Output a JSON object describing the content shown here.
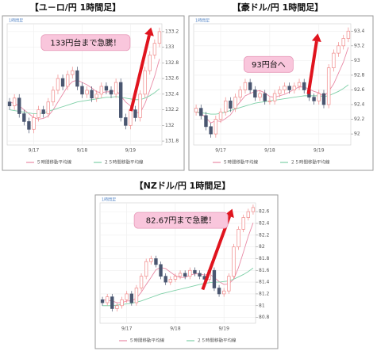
{
  "chart_data": [
    {
      "type": "candlestick",
      "title": "【ユ－ロ/円 1時間足】",
      "corner_label": "1時間足",
      "annotation": "133円台まで急騰！",
      "categories": [
        null,
        null,
        null,
        null,
        null,
        "9/17",
        null,
        null,
        null,
        null,
        null,
        null,
        null,
        null,
        null,
        "9/18",
        null,
        null,
        null,
        null,
        null,
        null,
        null,
        null,
        null,
        "9/19",
        null,
        null,
        null,
        null,
        null,
        null
      ],
      "open": [
        132.3,
        132.25,
        132.35,
        132.15,
        132.05,
        131.95,
        132.1,
        132.2,
        132.15,
        132.3,
        132.45,
        132.6,
        132.5,
        132.65,
        132.7,
        132.5,
        132.4,
        132.45,
        132.35,
        132.4,
        132.5,
        132.45,
        132.4,
        132.55,
        132.1,
        132.0,
        132.2,
        132.1,
        132.4,
        132.7,
        132.9,
        133.05
      ],
      "high": [
        132.35,
        132.4,
        132.4,
        132.2,
        132.1,
        132.15,
        132.25,
        132.25,
        132.35,
        132.5,
        132.65,
        132.65,
        132.7,
        132.75,
        132.75,
        132.55,
        132.5,
        132.5,
        132.45,
        132.55,
        132.55,
        132.5,
        132.6,
        132.6,
        132.15,
        132.25,
        132.25,
        132.45,
        132.75,
        132.95,
        133.1,
        133.25
      ],
      "low": [
        132.2,
        132.2,
        132.1,
        132.0,
        131.9,
        131.9,
        132.05,
        132.1,
        132.1,
        132.25,
        132.4,
        132.45,
        132.45,
        132.6,
        132.45,
        132.35,
        132.35,
        132.3,
        132.3,
        132.35,
        132.4,
        132.35,
        132.35,
        132.05,
        131.95,
        131.95,
        132.05,
        132.05,
        132.35,
        132.65,
        132.85,
        133.0
      ],
      "close": [
        132.25,
        132.35,
        132.15,
        132.05,
        131.95,
        132.1,
        132.2,
        132.15,
        132.3,
        132.45,
        132.6,
        132.5,
        132.65,
        132.7,
        132.5,
        132.4,
        132.45,
        132.35,
        132.4,
        132.5,
        132.45,
        132.4,
        132.55,
        132.1,
        132.0,
        132.2,
        132.1,
        132.4,
        132.7,
        132.9,
        133.05,
        133.2
      ],
      "up_color": "#f08a8a",
      "down_color": "#4a5670",
      "series": [
        {
          "name": "５時間移動平均線",
          "color": "#e98aa6",
          "values": [
            132.3,
            132.28,
            132.25,
            132.2,
            132.15,
            132.1,
            132.08,
            132.09,
            132.12,
            132.2,
            132.3,
            132.4,
            132.5,
            132.56,
            132.58,
            132.55,
            132.52,
            132.48,
            132.43,
            132.42,
            132.43,
            132.43,
            132.45,
            132.38,
            132.3,
            132.25,
            132.17,
            132.16,
            132.28,
            132.45,
            132.63,
            132.85
          ]
        },
        {
          "name": "２５時間移動平均線",
          "color": "#7fd0a8",
          "values": [
            132.2,
            132.19,
            132.18,
            132.17,
            132.16,
            132.15,
            132.15,
            132.16,
            132.18,
            132.2,
            132.22,
            132.24,
            132.26,
            132.28,
            132.3,
            132.31,
            132.32,
            132.33,
            132.34,
            132.35,
            132.36,
            132.36,
            132.37,
            132.36,
            132.35,
            132.34,
            132.33,
            132.33,
            132.35,
            132.38,
            132.42,
            132.47
          ]
        }
      ],
      "ylim": [
        131.75,
        133.3
      ],
      "yticks": [
        131.8,
        132,
        132.2,
        132.4,
        132.6,
        132.8,
        133,
        133.2
      ],
      "grid": true
    },
    {
      "type": "candlestick",
      "title": "【豪ドル/円 1時間足】",
      "corner_label": "1時間足",
      "annotation": "93円台へ",
      "categories": [
        null,
        null,
        null,
        null,
        null,
        "9/17",
        null,
        null,
        null,
        null,
        null,
        null,
        null,
        null,
        null,
        "9/18",
        null,
        null,
        null,
        null,
        null,
        null,
        null,
        null,
        null,
        "9/19",
        null,
        null,
        null,
        null,
        null,
        null
      ],
      "open": [
        92.3,
        92.35,
        92.25,
        92.1,
        92.0,
        92.2,
        92.3,
        92.45,
        92.35,
        92.5,
        92.6,
        92.7,
        92.6,
        92.5,
        92.55,
        92.45,
        92.45,
        92.55,
        92.6,
        92.65,
        92.6,
        92.65,
        92.7,
        92.6,
        92.5,
        92.45,
        92.55,
        92.4,
        92.9,
        93.1,
        93.2,
        93.3
      ],
      "high": [
        92.4,
        92.4,
        92.3,
        92.15,
        92.25,
        92.35,
        92.5,
        92.5,
        92.55,
        92.65,
        92.75,
        92.75,
        92.65,
        92.6,
        92.6,
        92.5,
        92.6,
        92.65,
        92.7,
        92.7,
        92.7,
        92.75,
        92.75,
        92.65,
        92.55,
        92.6,
        92.6,
        92.95,
        93.15,
        93.25,
        93.35,
        93.45
      ],
      "low": [
        92.25,
        92.2,
        92.05,
        91.95,
        91.95,
        92.15,
        92.25,
        92.3,
        92.3,
        92.45,
        92.55,
        92.55,
        92.45,
        92.45,
        92.4,
        92.4,
        92.4,
        92.5,
        92.55,
        92.55,
        92.55,
        92.6,
        92.55,
        92.45,
        92.4,
        92.4,
        92.35,
        92.35,
        92.85,
        93.05,
        93.15,
        93.25
      ],
      "close": [
        92.35,
        92.25,
        92.1,
        92.0,
        92.2,
        92.3,
        92.45,
        92.35,
        92.5,
        92.6,
        92.7,
        92.6,
        92.5,
        92.55,
        92.45,
        92.45,
        92.55,
        92.6,
        92.65,
        92.6,
        92.65,
        92.7,
        92.6,
        92.5,
        92.45,
        92.55,
        92.4,
        92.9,
        93.1,
        93.2,
        93.3,
        93.4
      ],
      "up_color": "#f08a8a",
      "down_color": "#4a5670",
      "series": [
        {
          "name": "５時間移動平均線",
          "color": "#e98aa6",
          "values": [
            92.3,
            92.28,
            92.22,
            92.15,
            92.18,
            92.17,
            92.21,
            92.26,
            92.36,
            92.44,
            92.52,
            92.55,
            92.58,
            92.59,
            92.56,
            92.51,
            92.5,
            92.52,
            92.54,
            92.57,
            92.61,
            92.64,
            92.64,
            92.61,
            92.58,
            92.56,
            92.51,
            92.58,
            92.68,
            92.83,
            92.98,
            93.18
          ]
        },
        {
          "name": "２５時間移動平均線",
          "color": "#7fd0a8",
          "values": [
            92.3,
            92.29,
            92.28,
            92.27,
            92.27,
            92.28,
            92.3,
            92.32,
            92.34,
            92.36,
            92.38,
            92.4,
            92.42,
            92.43,
            92.44,
            92.45,
            92.46,
            92.47,
            92.48,
            92.49,
            92.5,
            92.51,
            92.52,
            92.52,
            92.52,
            92.52,
            92.51,
            92.52,
            92.55,
            92.58,
            92.62,
            92.67
          ]
        }
      ],
      "ylim": [
        91.85,
        93.5
      ],
      "yticks": [
        92,
        92.2,
        92.4,
        92.6,
        92.8,
        93,
        93.2,
        93.4
      ],
      "grid": true
    },
    {
      "type": "candlestick",
      "title": "【NZドル/円 1時間足】",
      "corner_label": "1時間足",
      "annotation": "82.67円まで急騰！",
      "categories": [
        null,
        null,
        null,
        null,
        null,
        "9/17",
        null,
        null,
        null,
        null,
        null,
        null,
        null,
        null,
        null,
        "9/18",
        null,
        null,
        null,
        null,
        null,
        null,
        null,
        null,
        null,
        "9/19",
        null,
        null,
        null,
        null,
        null,
        null
      ],
      "open": [
        81.1,
        81.05,
        81.15,
        80.95,
        81.0,
        81.1,
        81.2,
        81.05,
        81.3,
        81.5,
        81.75,
        81.8,
        81.7,
        81.5,
        81.4,
        81.45,
        81.5,
        81.55,
        81.5,
        81.6,
        81.55,
        81.5,
        81.45,
        81.6,
        81.3,
        81.2,
        81.25,
        81.5,
        82.0,
        82.3,
        82.5,
        82.6
      ],
      "high": [
        81.15,
        81.2,
        81.2,
        81.05,
        81.15,
        81.25,
        81.25,
        81.35,
        81.55,
        81.8,
        81.85,
        81.85,
        81.75,
        81.55,
        81.5,
        81.55,
        81.6,
        81.6,
        81.65,
        81.65,
        81.6,
        81.55,
        81.65,
        81.65,
        81.35,
        81.3,
        81.55,
        82.05,
        82.35,
        82.55,
        82.65,
        82.72
      ],
      "low": [
        81.0,
        81.0,
        80.9,
        80.9,
        80.95,
        81.05,
        81.0,
        81.0,
        81.25,
        81.45,
        81.7,
        81.65,
        81.45,
        81.35,
        81.35,
        81.4,
        81.45,
        81.45,
        81.45,
        81.5,
        81.45,
        81.4,
        81.4,
        81.25,
        81.15,
        81.15,
        81.2,
        81.45,
        81.95,
        82.25,
        82.45,
        82.55
      ],
      "close": [
        81.05,
        81.15,
        80.95,
        81.0,
        81.1,
        81.2,
        81.05,
        81.3,
        81.5,
        81.75,
        81.8,
        81.7,
        81.5,
        81.4,
        81.45,
        81.5,
        81.55,
        81.5,
        81.6,
        81.55,
        81.5,
        81.45,
        81.6,
        81.3,
        81.2,
        81.25,
        81.5,
        82.0,
        82.3,
        82.5,
        82.6,
        82.67
      ],
      "up_color": "#f08a8a",
      "down_color": "#4a5670",
      "series": [
        {
          "name": "５時間移動平均線",
          "color": "#e98aa6",
          "values": [
            81.1,
            81.09,
            81.08,
            81.05,
            81.05,
            81.08,
            81.08,
            81.13,
            81.23,
            81.36,
            81.48,
            81.61,
            81.65,
            81.63,
            81.57,
            81.51,
            81.48,
            81.48,
            81.52,
            81.54,
            81.54,
            81.52,
            81.54,
            81.48,
            81.41,
            81.36,
            81.37,
            81.45,
            81.65,
            81.91,
            82.18,
            82.41
          ]
        },
        {
          "name": "２５時間移動平均線",
          "color": "#7fd0a8",
          "values": [
            81.0,
            81.0,
            81.0,
            81.01,
            81.02,
            81.03,
            81.04,
            81.06,
            81.08,
            81.11,
            81.14,
            81.17,
            81.2,
            81.22,
            81.24,
            81.26,
            81.28,
            81.3,
            81.32,
            81.34,
            81.36,
            81.38,
            81.39,
            81.4,
            81.4,
            81.41,
            81.42,
            81.45,
            81.49,
            81.53,
            81.58,
            81.64
          ]
        }
      ],
      "ylim": [
        80.7,
        82.75
      ],
      "yticks": [
        80.8,
        81,
        81.2,
        81.4,
        81.6,
        81.8,
        82,
        82.2,
        82.4,
        82.6
      ],
      "grid": true
    }
  ]
}
